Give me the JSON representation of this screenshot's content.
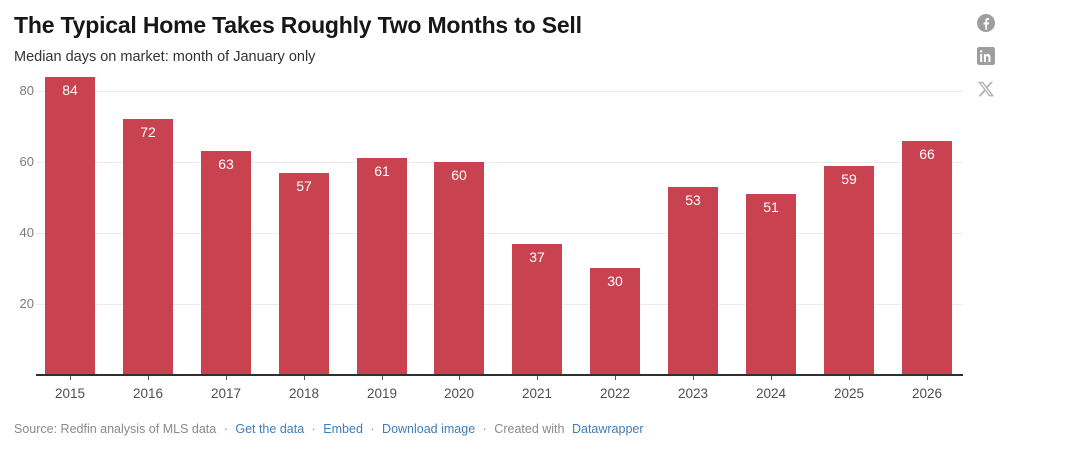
{
  "header": {
    "title": "The Typical Home Takes Roughly Two Months to Sell",
    "subtitle": "Median days on market: month of January only"
  },
  "share": {
    "icons": [
      "facebook",
      "linkedin",
      "x"
    ]
  },
  "chart_data": {
    "type": "bar",
    "title": "The Typical Home Takes Roughly Two Months to Sell",
    "subtitle": "Median days on market: month of January only",
    "categories": [
      "2015",
      "2016",
      "2017",
      "2018",
      "2019",
      "2020",
      "2021",
      "2022",
      "2023",
      "2024",
      "2025",
      "2026"
    ],
    "values": [
      84,
      72,
      63,
      57,
      61,
      60,
      37,
      30,
      53,
      51,
      59,
      66
    ],
    "xlabel": "",
    "ylabel": "",
    "yticks": [
      20,
      40,
      60,
      80
    ],
    "ylim": [
      0,
      85
    ],
    "grid": "horizontal",
    "legend": "none",
    "value_labels": "inside-top",
    "bar_color": "#c84250",
    "value_label_color": "#ffffff"
  },
  "footer": {
    "source": "Source: Redfin analysis of MLS data",
    "sep": "·",
    "links": [
      {
        "label": "Get the data"
      },
      {
        "label": "Embed"
      },
      {
        "label": "Download image"
      }
    ],
    "created_with": "Created with",
    "creator": "Datawrapper"
  },
  "colors": {
    "bar": "#c84250",
    "link_blue": "#3d7ebd",
    "axis_text": "#7c7c7c",
    "grid": "#ebebeb",
    "icon_grey": "#9e9e9e"
  }
}
